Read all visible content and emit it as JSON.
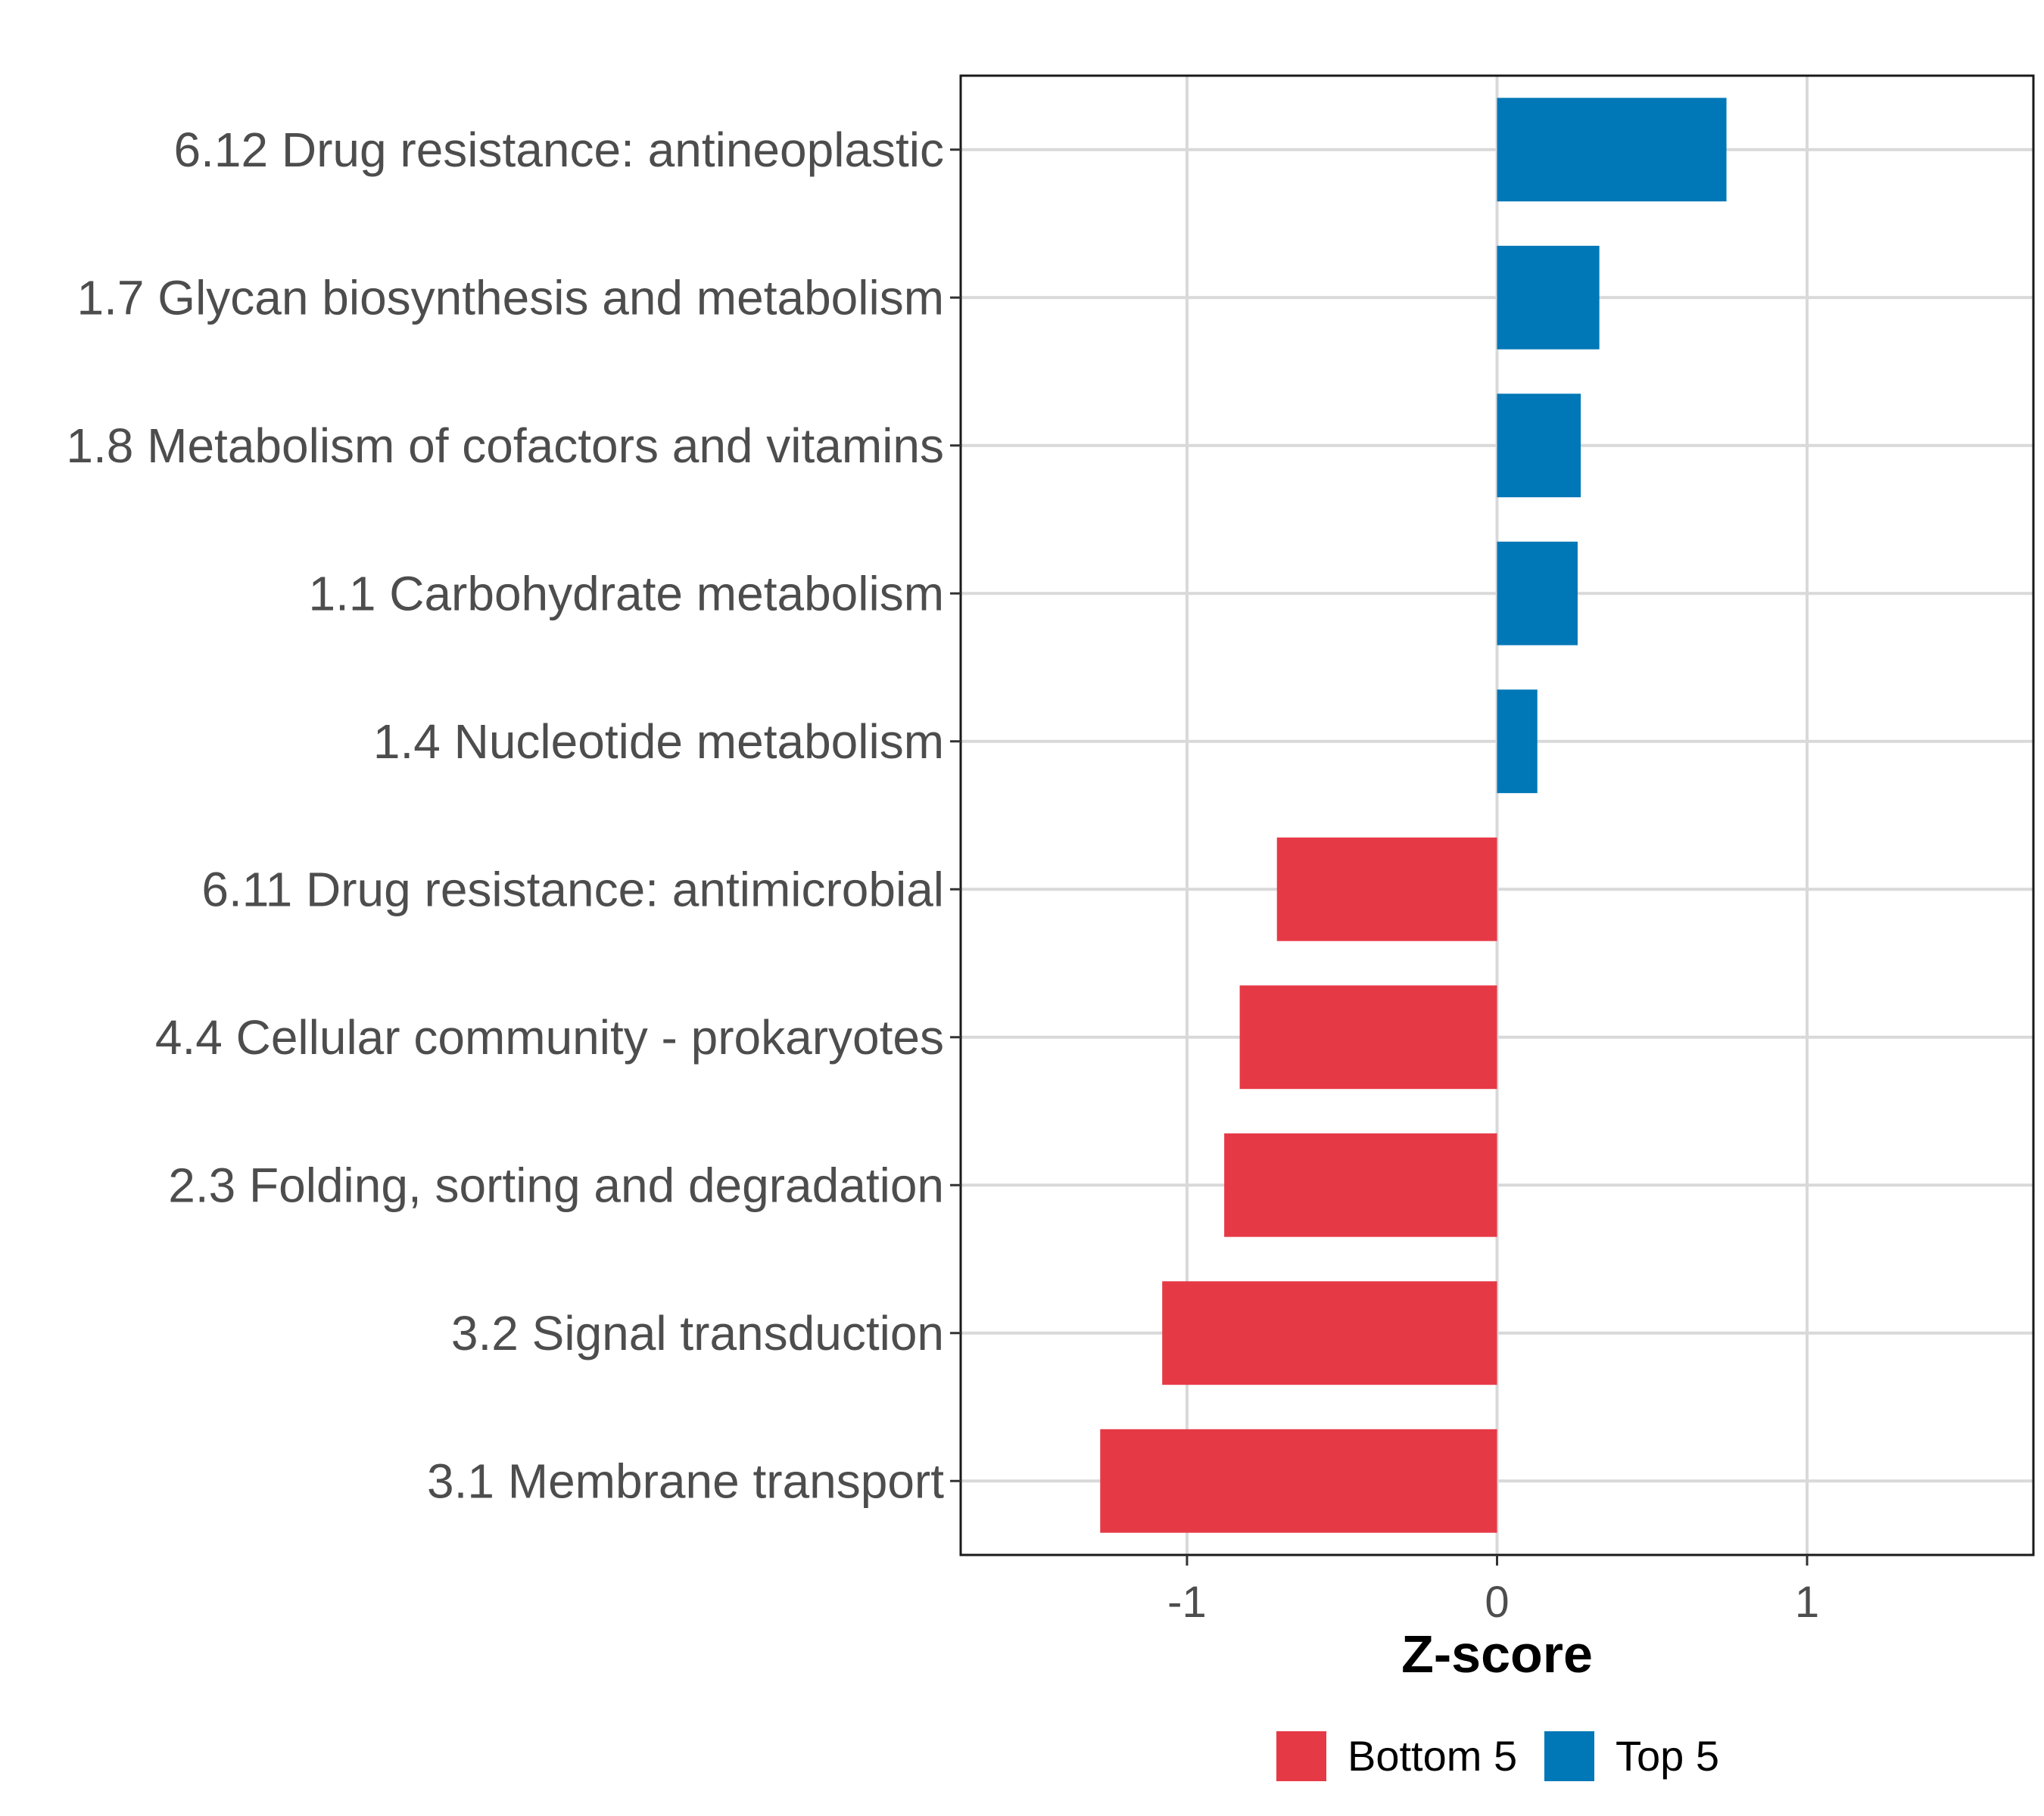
{
  "chart_data": {
    "type": "bar",
    "orientation": "horizontal",
    "xlabel": "Z-score",
    "ylabel": "",
    "xlim": [
      -1.73,
      1.73
    ],
    "xticks": [
      -1,
      0,
      1
    ],
    "xtick_labels": [
      "-1",
      "0",
      "1"
    ],
    "grid": true,
    "legend_position": "bottom",
    "categories": [
      "6.12 Drug resistance: antineoplastic",
      "1.7 Glycan biosynthesis and metabolism",
      "1.8 Metabolism of cofactors and vitamins",
      "1.1 Carbohydrate metabolism",
      "1.4 Nucleotide metabolism",
      "6.11 Drug resistance: antimicrobial",
      "4.4 Cellular community - prokaryotes",
      "2.3 Folding, sorting and degradation",
      "3.2 Signal transduction",
      "3.1 Membrane transport"
    ],
    "values": [
      0.74,
      0.33,
      0.27,
      0.26,
      0.13,
      -0.71,
      -0.83,
      -0.88,
      -1.08,
      -1.28
    ],
    "groups": [
      "Top 5",
      "Top 5",
      "Top 5",
      "Top 5",
      "Top 5",
      "Bottom 5",
      "Bottom 5",
      "Bottom 5",
      "Bottom 5",
      "Bottom 5"
    ],
    "legend": [
      {
        "name": "Bottom 5",
        "color": "#e63946"
      },
      {
        "name": "Top 5",
        "color": "#0077b6"
      }
    ]
  }
}
